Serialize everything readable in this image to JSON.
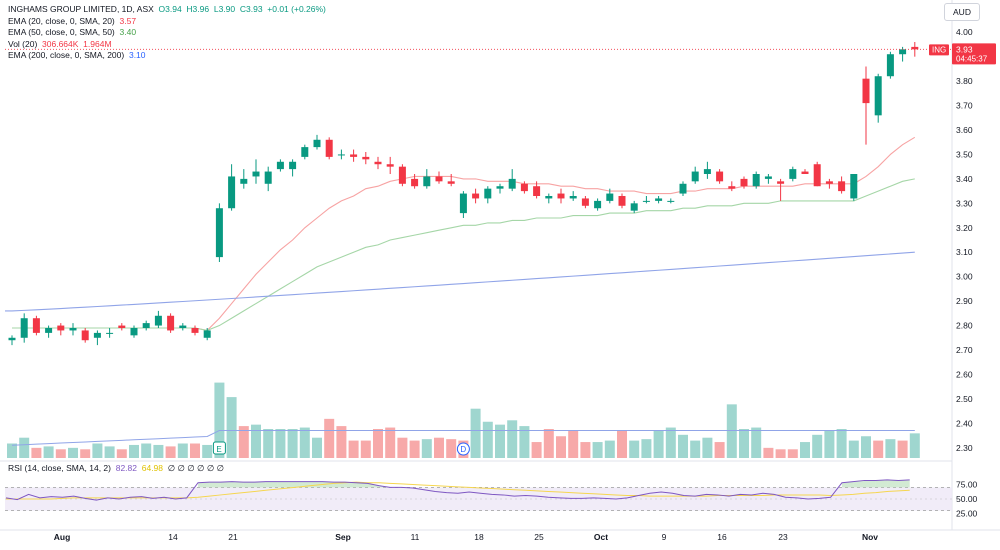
{
  "symbol_line": {
    "title": "INGHAMS GROUP LIMITED, 1D, ASX",
    "open": "O3.94",
    "high": "H3.96",
    "low": "L3.90",
    "close": "C3.93",
    "change": "+0.01 (+0.26%)"
  },
  "indicators": {
    "ema20": {
      "label": "EMA (20, close, 0, SMA, 20)",
      "value": "3.57"
    },
    "ema50": {
      "label": "EMA (50, close, 0, SMA, 50)",
      "value": "3.40"
    },
    "vol": {
      "label": "Vol (20)",
      "value1": "306.664K",
      "value2": "1.964M"
    },
    "ema200": {
      "label": "EMA (200, close, 0, SMA, 200)",
      "value": "3.10"
    },
    "rsi": {
      "label": "RSI (14, close, SMA, 14, 2)",
      "value": "82.82",
      "value2": "64.98",
      "extras": "∅ ∅ ∅ ∅ ∅ ∅"
    }
  },
  "currency": "AUD",
  "price_tag": {
    "ticker": "ING",
    "price": "3.93",
    "countdown": "04:45:37"
  },
  "colors": {
    "up": "#089981",
    "down": "#f23645",
    "ema20": "#f7a3a3",
    "ema50": "#a5d6a7",
    "ema200": "#90a4e8",
    "rsi": "#7e57c2",
    "rsi_ma": "#f5d650",
    "vol_up": "#9fd6cf",
    "vol_down": "#f7a9a9"
  },
  "event_markers": [
    {
      "label": "E",
      "date": "Aug 18"
    },
    {
      "label": "D",
      "date": "Sep 15"
    }
  ],
  "chart_data": {
    "type": "candlestick",
    "y_ticks": [
      "4.00",
      "3.90",
      "3.80",
      "3.70",
      "3.60",
      "3.50",
      "3.40",
      "3.30",
      "3.20",
      "3.10",
      "3.00",
      "2.90",
      "2.80",
      "2.70",
      "2.60",
      "2.50",
      "2.40",
      "2.30"
    ],
    "rsi_ticks": [
      "75.00",
      "50.00",
      "25.00"
    ],
    "x_ticks": [
      {
        "label": "Aug",
        "date": "2023-08-01"
      },
      {
        "label": "14",
        "date": "2023-08-14"
      },
      {
        "label": "21",
        "date": "2023-08-21"
      },
      {
        "label": "Sep",
        "date": "2023-09-01"
      },
      {
        "label": "11",
        "date": "2023-09-11"
      },
      {
        "label": "18",
        "date": "2023-09-18"
      },
      {
        "label": "25",
        "date": "2023-09-25"
      },
      {
        "label": "Oct",
        "date": "2023-10-02"
      },
      {
        "label": "9",
        "date": "2023-10-09"
      },
      {
        "label": "16",
        "date": "2023-10-16"
      },
      {
        "label": "23",
        "date": "2023-10-23"
      },
      {
        "label": "Nov",
        "date": "2023-11-01"
      }
    ],
    "price_range": [
      2.25,
      4.05
    ],
    "candles": [
      {
        "o": 2.74,
        "h": 2.76,
        "l": 2.72,
        "c": 2.75
      },
      {
        "o": 2.75,
        "h": 2.85,
        "l": 2.73,
        "c": 2.83
      },
      {
        "o": 2.83,
        "h": 2.84,
        "l": 2.76,
        "c": 2.77
      },
      {
        "o": 2.77,
        "h": 2.8,
        "l": 2.75,
        "c": 2.79
      },
      {
        "o": 2.8,
        "h": 2.81,
        "l": 2.76,
        "c": 2.78
      },
      {
        "o": 2.78,
        "h": 2.81,
        "l": 2.76,
        "c": 2.79
      },
      {
        "o": 2.78,
        "h": 2.79,
        "l": 2.73,
        "c": 2.74
      },
      {
        "o": 2.75,
        "h": 2.78,
        "l": 2.72,
        "c": 2.77
      },
      {
        "o": 2.77,
        "h": 2.79,
        "l": 2.75,
        "c": 2.77
      },
      {
        "o": 2.8,
        "h": 2.81,
        "l": 2.78,
        "c": 2.79
      },
      {
        "o": 2.76,
        "h": 2.8,
        "l": 2.75,
        "c": 2.79
      },
      {
        "o": 2.79,
        "h": 2.82,
        "l": 2.78,
        "c": 2.81
      },
      {
        "o": 2.8,
        "h": 2.86,
        "l": 2.79,
        "c": 2.84
      },
      {
        "o": 2.84,
        "h": 2.85,
        "l": 2.77,
        "c": 2.78
      },
      {
        "o": 2.79,
        "h": 2.81,
        "l": 2.78,
        "c": 2.8
      },
      {
        "o": 2.79,
        "h": 2.8,
        "l": 2.76,
        "c": 2.77
      },
      {
        "o": 2.75,
        "h": 2.79,
        "l": 2.74,
        "c": 2.78
      },
      {
        "o": 3.08,
        "h": 3.3,
        "l": 3.06,
        "c": 3.28
      },
      {
        "o": 3.28,
        "h": 3.46,
        "l": 3.27,
        "c": 3.41
      },
      {
        "o": 3.38,
        "h": 3.44,
        "l": 3.36,
        "c": 3.4
      },
      {
        "o": 3.41,
        "h": 3.48,
        "l": 3.38,
        "c": 3.43
      },
      {
        "o": 3.38,
        "h": 3.45,
        "l": 3.35,
        "c": 3.43
      },
      {
        "o": 3.44,
        "h": 3.48,
        "l": 3.43,
        "c": 3.47
      },
      {
        "o": 3.44,
        "h": 3.48,
        "l": 3.41,
        "c": 3.47
      },
      {
        "o": 3.49,
        "h": 3.54,
        "l": 3.48,
        "c": 3.53
      },
      {
        "o": 3.53,
        "h": 3.58,
        "l": 3.52,
        "c": 3.56
      },
      {
        "o": 3.56,
        "h": 3.57,
        "l": 3.48,
        "c": 3.49
      },
      {
        "o": 3.5,
        "h": 3.52,
        "l": 3.48,
        "c": 3.5
      },
      {
        "o": 3.5,
        "h": 3.52,
        "l": 3.47,
        "c": 3.49
      },
      {
        "o": 3.49,
        "h": 3.51,
        "l": 3.46,
        "c": 3.48
      },
      {
        "o": 3.47,
        "h": 3.49,
        "l": 3.44,
        "c": 3.46
      },
      {
        "o": 3.46,
        "h": 3.49,
        "l": 3.42,
        "c": 3.45
      },
      {
        "o": 3.45,
        "h": 3.46,
        "l": 3.37,
        "c": 3.38
      },
      {
        "o": 3.4,
        "h": 3.42,
        "l": 3.36,
        "c": 3.37
      },
      {
        "o": 3.37,
        "h": 3.44,
        "l": 3.36,
        "c": 3.41
      },
      {
        "o": 3.41,
        "h": 3.43,
        "l": 3.38,
        "c": 3.39
      },
      {
        "o": 3.39,
        "h": 3.42,
        "l": 3.37,
        "c": 3.38
      },
      {
        "o": 3.26,
        "h": 3.35,
        "l": 3.24,
        "c": 3.34
      },
      {
        "o": 3.34,
        "h": 3.36,
        "l": 3.3,
        "c": 3.32
      },
      {
        "o": 3.32,
        "h": 3.37,
        "l": 3.3,
        "c": 3.36
      },
      {
        "o": 3.36,
        "h": 3.38,
        "l": 3.34,
        "c": 3.37
      },
      {
        "o": 3.36,
        "h": 3.44,
        "l": 3.35,
        "c": 3.4
      },
      {
        "o": 3.38,
        "h": 3.39,
        "l": 3.34,
        "c": 3.35
      },
      {
        "o": 3.37,
        "h": 3.39,
        "l": 3.32,
        "c": 3.33
      },
      {
        "o": 3.32,
        "h": 3.34,
        "l": 3.3,
        "c": 3.33
      },
      {
        "o": 3.34,
        "h": 3.36,
        "l": 3.3,
        "c": 3.32
      },
      {
        "o": 3.32,
        "h": 3.35,
        "l": 3.31,
        "c": 3.33
      },
      {
        "o": 3.32,
        "h": 3.33,
        "l": 3.28,
        "c": 3.29
      },
      {
        "o": 3.28,
        "h": 3.32,
        "l": 3.27,
        "c": 3.31
      },
      {
        "o": 3.31,
        "h": 3.36,
        "l": 3.3,
        "c": 3.34
      },
      {
        "o": 3.33,
        "h": 3.34,
        "l": 3.28,
        "c": 3.29
      },
      {
        "o": 3.27,
        "h": 3.31,
        "l": 3.26,
        "c": 3.3
      },
      {
        "o": 3.31,
        "h": 3.33,
        "l": 3.3,
        "c": 3.31
      },
      {
        "o": 3.31,
        "h": 3.33,
        "l": 3.3,
        "c": 3.32
      },
      {
        "o": 3.31,
        "h": 3.32,
        "l": 3.3,
        "c": 3.31
      },
      {
        "o": 3.34,
        "h": 3.39,
        "l": 3.33,
        "c": 3.38
      },
      {
        "o": 3.39,
        "h": 3.45,
        "l": 3.38,
        "c": 3.43
      },
      {
        "o": 3.42,
        "h": 3.47,
        "l": 3.4,
        "c": 3.44
      },
      {
        "o": 3.43,
        "h": 3.44,
        "l": 3.38,
        "c": 3.39
      },
      {
        "o": 3.37,
        "h": 3.39,
        "l": 3.35,
        "c": 3.36
      },
      {
        "o": 3.4,
        "h": 3.41,
        "l": 3.36,
        "c": 3.37
      },
      {
        "o": 3.37,
        "h": 3.43,
        "l": 3.36,
        "c": 3.42
      },
      {
        "o": 3.4,
        "h": 3.42,
        "l": 3.38,
        "c": 3.41
      },
      {
        "o": 3.39,
        "h": 3.4,
        "l": 3.31,
        "c": 3.38
      },
      {
        "o": 3.4,
        "h": 3.45,
        "l": 3.39,
        "c": 3.44
      },
      {
        "o": 3.43,
        "h": 3.44,
        "l": 3.42,
        "c": 3.42
      },
      {
        "o": 3.46,
        "h": 3.47,
        "l": 3.37,
        "c": 3.37
      },
      {
        "o": 3.39,
        "h": 3.4,
        "l": 3.36,
        "c": 3.38
      },
      {
        "o": 3.39,
        "h": 3.41,
        "l": 3.34,
        "c": 3.35
      },
      {
        "o": 3.32,
        "h": 3.42,
        "l": 3.31,
        "c": 3.42
      },
      {
        "o": 3.81,
        "h": 3.86,
        "l": 3.54,
        "c": 3.71
      },
      {
        "o": 3.66,
        "h": 3.83,
        "l": 3.63,
        "c": 3.82
      },
      {
        "o": 3.82,
        "h": 3.92,
        "l": 3.81,
        "c": 3.91
      },
      {
        "o": 3.91,
        "h": 3.94,
        "l": 3.88,
        "c": 3.93
      },
      {
        "o": 3.94,
        "h": 3.96,
        "l": 3.9,
        "c": 3.93
      }
    ],
    "ema20": [
      2.79,
      2.79,
      2.79,
      2.79,
      2.79,
      2.79,
      2.79,
      2.79,
      2.79,
      2.79,
      2.79,
      2.79,
      2.79,
      2.79,
      2.79,
      2.79,
      2.78,
      2.83,
      2.89,
      2.95,
      3.01,
      3.06,
      3.11,
      3.15,
      3.2,
      3.24,
      3.28,
      3.31,
      3.33,
      3.36,
      3.37,
      3.39,
      3.4,
      3.41,
      3.41,
      3.41,
      3.41,
      3.4,
      3.4,
      3.39,
      3.39,
      3.39,
      3.38,
      3.38,
      3.38,
      3.37,
      3.37,
      3.36,
      3.36,
      3.35,
      3.35,
      3.35,
      3.34,
      3.34,
      3.34,
      3.35,
      3.35,
      3.36,
      3.36,
      3.36,
      3.37,
      3.37,
      3.37,
      3.37,
      3.37,
      3.38,
      3.38,
      3.38,
      3.38,
      3.38,
      3.41,
      3.45,
      3.5,
      3.54,
      3.57
    ],
    "ema50": [
      2.79,
      2.79,
      2.79,
      2.79,
      2.79,
      2.79,
      2.79,
      2.79,
      2.79,
      2.79,
      2.79,
      2.79,
      2.79,
      2.79,
      2.79,
      2.79,
      2.78,
      2.8,
      2.83,
      2.86,
      2.89,
      2.92,
      2.95,
      2.98,
      3.01,
      3.04,
      3.06,
      3.08,
      3.1,
      3.12,
      3.13,
      3.15,
      3.16,
      3.17,
      3.18,
      3.19,
      3.2,
      3.21,
      3.21,
      3.22,
      3.22,
      3.23,
      3.23,
      3.24,
      3.24,
      3.24,
      3.25,
      3.25,
      3.25,
      3.26,
      3.26,
      3.26,
      3.27,
      3.27,
      3.27,
      3.28,
      3.28,
      3.29,
      3.29,
      3.29,
      3.3,
      3.3,
      3.3,
      3.31,
      3.31,
      3.31,
      3.31,
      3.31,
      3.31,
      3.31,
      3.33,
      3.35,
      3.37,
      3.39,
      3.4
    ],
    "ema200_start": 2.86,
    "ema200_end": 3.1,
    "volume": [
      0.5,
      0.7,
      0.35,
      0.4,
      0.3,
      0.35,
      0.3,
      0.5,
      0.4,
      0.3,
      0.45,
      0.5,
      0.45,
      0.4,
      0.5,
      0.5,
      0.45,
      2.6,
      2.1,
      1.1,
      1.15,
      1.0,
      1.0,
      1.0,
      1.05,
      0.7,
      1.35,
      1.1,
      0.6,
      0.6,
      1.0,
      1.05,
      0.7,
      0.6,
      0.65,
      0.7,
      0.65,
      0.6,
      1.7,
      1.25,
      1.15,
      1.3,
      1.1,
      0.55,
      1.0,
      0.75,
      0.95,
      0.55,
      0.55,
      0.6,
      0.95,
      0.6,
      0.65,
      0.95,
      1.05,
      0.8,
      0.6,
      0.7,
      0.55,
      1.85,
      1.0,
      1.05,
      0.35,
      0.3,
      0.3,
      0.55,
      0.8,
      0.95,
      1.0,
      0.6,
      0.75,
      0.6,
      0.65,
      0.6,
      0.85,
      3.1,
      3.7,
      2.05,
      1.95,
      0.2
    ],
    "vol_up": [
      1,
      1,
      0,
      1,
      0,
      1,
      0,
      1,
      1,
      0,
      1,
      1,
      1,
      0,
      1,
      0,
      1,
      1,
      1,
      0,
      1,
      1,
      1,
      1,
      1,
      1,
      0,
      0,
      0,
      0,
      0,
      0,
      0,
      0,
      1,
      0,
      0,
      0,
      1,
      1,
      1,
      1,
      1,
      0,
      0,
      0,
      0,
      0,
      1,
      1,
      0,
      1,
      1,
      1,
      1,
      1,
      1,
      1,
      0,
      1,
      1,
      1,
      0,
      0,
      0,
      1,
      1,
      1,
      1,
      1,
      1,
      0,
      1,
      0,
      1,
      0,
      1,
      1,
      0,
      0
    ],
    "rsi": [
      52,
      49,
      58,
      52,
      54,
      53,
      55,
      51,
      48,
      52,
      50,
      53,
      54,
      51,
      53,
      50,
      52,
      78,
      79,
      79,
      80,
      79,
      79,
      80,
      80,
      80,
      80,
      80,
      80,
      79,
      79,
      78,
      77,
      73,
      70,
      70,
      69,
      66,
      63,
      61,
      60,
      62,
      60,
      58,
      57,
      55,
      56,
      55,
      53,
      52,
      51,
      51,
      52,
      51,
      50,
      52,
      56,
      60,
      62,
      60,
      56,
      55,
      58,
      57,
      55,
      58,
      57,
      60,
      58,
      53,
      52,
      50,
      51,
      53,
      78,
      80,
      82,
      82,
      83,
      82,
      83
    ],
    "rsi_ma": [
      50,
      50,
      50,
      50,
      50,
      51,
      52,
      52,
      52,
      52,
      52,
      52,
      52,
      52,
      52,
      52,
      52,
      53,
      55,
      57,
      59,
      61,
      63,
      65,
      67,
      69,
      71,
      73,
      75,
      77,
      78,
      79,
      78,
      78,
      77,
      76,
      75,
      74,
      73,
      72,
      71,
      70,
      69,
      68,
      67,
      66,
      65,
      64,
      63,
      62,
      61,
      60,
      59,
      58,
      57,
      56,
      56,
      55,
      55,
      55,
      55,
      55,
      55,
      56,
      56,
      56,
      56,
      56,
      57,
      57,
      57,
      57,
      57,
      56,
      57,
      58,
      60,
      61,
      63,
      64,
      65
    ]
  }
}
